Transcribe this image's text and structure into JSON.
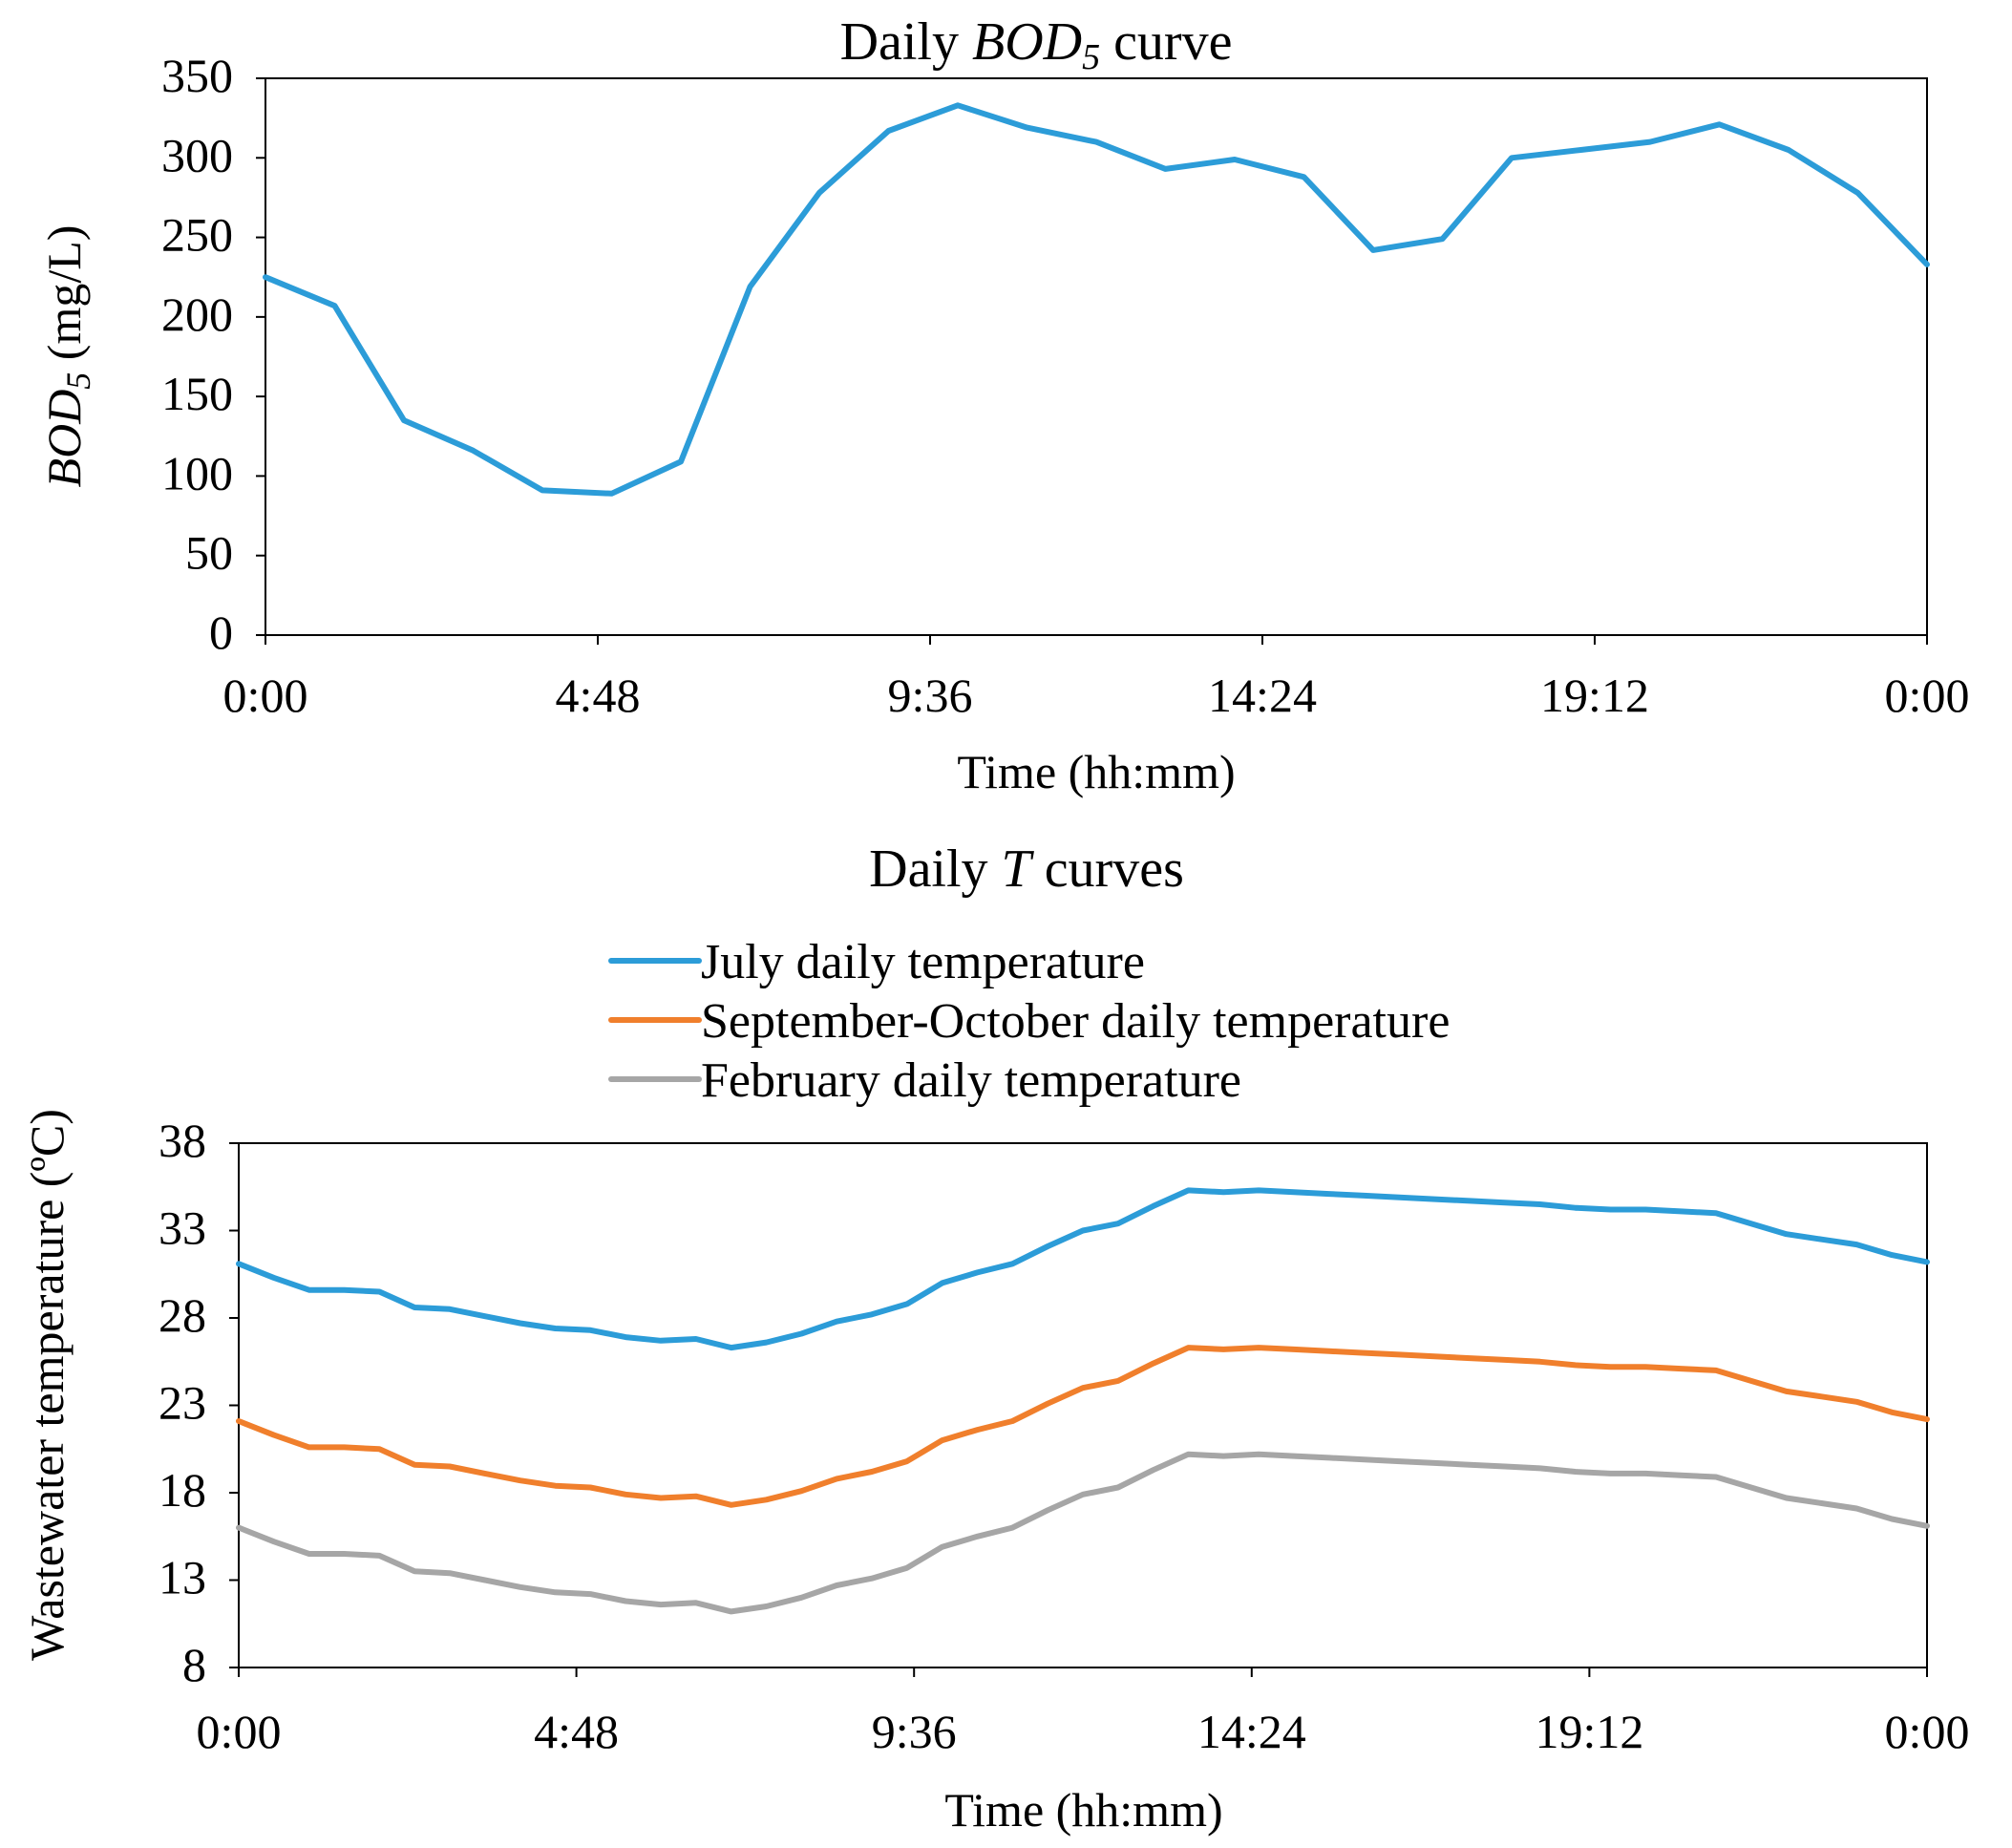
{
  "chart_data": [
    {
      "type": "line",
      "title": {
        "prefix": "Daily ",
        "italic": "BOD",
        "sub": "5",
        "suffix": " curve"
      },
      "xlabel": "Time (hh:mm)",
      "ylabel": {
        "italic": "BOD",
        "sub": "5",
        "suffix": " (mg/L)"
      },
      "x_unit": "hours",
      "xlim": [
        0,
        24
      ],
      "ylim": [
        0,
        350
      ],
      "x_ticks": [
        0,
        4.8,
        9.6,
        14.4,
        19.2,
        24
      ],
      "x_tick_labels": [
        "0:00",
        "4:48",
        "9:36",
        "14:24",
        "19:12",
        "0:00"
      ],
      "y_ticks": [
        0,
        50,
        100,
        150,
        200,
        250,
        300,
        350
      ],
      "y_tick_labels": [
        "0",
        "50",
        "100",
        "150",
        "200",
        "250",
        "300",
        "350"
      ],
      "grid": false,
      "series": [
        {
          "name": "BOD5",
          "color": "#2C9CD8",
          "x": [
            0,
            1,
            2,
            3,
            4,
            5,
            6,
            7,
            8,
            9,
            10,
            11,
            12,
            13,
            14,
            15,
            16,
            17,
            18,
            19,
            20,
            21,
            22,
            23,
            24
          ],
          "values": [
            225,
            207,
            135,
            116,
            91,
            89,
            109,
            219,
            278,
            317,
            333,
            319,
            310,
            293,
            299,
            288,
            242,
            249,
            300,
            305,
            310,
            321,
            305,
            278,
            233
          ]
        }
      ]
    },
    {
      "type": "line",
      "title": {
        "prefix": "Daily ",
        "italic": "T",
        "sub": "",
        "suffix": " curves"
      },
      "xlabel": "Time (hh:mm)",
      "ylabel": "Wastewater temperature (ºC)",
      "x_unit": "hours",
      "xlim": [
        0,
        24
      ],
      "ylim": [
        8,
        38
      ],
      "x_ticks": [
        0,
        4.8,
        9.6,
        14.4,
        19.2,
        24
      ],
      "x_tick_labels": [
        "0:00",
        "4:48",
        "9:36",
        "14:24",
        "19:12",
        "0:00"
      ],
      "y_ticks": [
        8,
        13,
        18,
        23,
        28,
        33,
        38
      ],
      "y_tick_labels": [
        "8",
        "13",
        "18",
        "23",
        "28",
        "33",
        "38"
      ],
      "grid": false,
      "legend_position": "top-center",
      "series": [
        {
          "name": "July daily temperature",
          "color": "#2C9CD8",
          "x": [
            0,
            0.5,
            1,
            1.5,
            2,
            2.5,
            3,
            3.5,
            4,
            4.5,
            5,
            5.5,
            6,
            6.5,
            7,
            7.5,
            8,
            8.5,
            9,
            9.5,
            10,
            10.5,
            11,
            11.5,
            12,
            12.5,
            13,
            13.5,
            14,
            14.5,
            15,
            15.5,
            16,
            16.5,
            17,
            17.5,
            18,
            18.5,
            19,
            19.5,
            20,
            20.5,
            21,
            21.5,
            22,
            22.5,
            23,
            23.5,
            24
          ],
          "values": [
            31.1,
            30.3,
            29.6,
            29.6,
            29.5,
            28.6,
            28.5,
            28.1,
            27.7,
            27.4,
            27.3,
            26.9,
            26.7,
            26.8,
            26.3,
            26.6,
            27.1,
            27.8,
            28.2,
            28.8,
            30.0,
            30.6,
            31.1,
            32.1,
            33.0,
            33.4,
            34.4,
            35.3,
            35.2,
            35.3,
            35.2,
            35.1,
            35.0,
            34.9,
            34.8,
            34.7,
            34.6,
            34.5,
            34.3,
            34.2,
            34.2,
            34.1,
            34.0,
            33.4,
            32.8,
            32.5,
            32.2,
            31.6,
            31.2
          ]
        },
        {
          "name": "September-October daily temperature",
          "color": "#F07F2C",
          "x": [
            0,
            0.5,
            1,
            1.5,
            2,
            2.5,
            3,
            3.5,
            4,
            4.5,
            5,
            5.5,
            6,
            6.5,
            7,
            7.5,
            8,
            8.5,
            9,
            9.5,
            10,
            10.5,
            11,
            11.5,
            12,
            12.5,
            13,
            13.5,
            14,
            14.5,
            15,
            15.5,
            16,
            16.5,
            17,
            17.5,
            18,
            18.5,
            19,
            19.5,
            20,
            20.5,
            21,
            21.5,
            22,
            22.5,
            23,
            23.5,
            24
          ],
          "values": [
            22.1,
            21.3,
            20.6,
            20.6,
            20.5,
            19.6,
            19.5,
            19.1,
            18.7,
            18.4,
            18.3,
            17.9,
            17.7,
            17.8,
            17.3,
            17.6,
            18.1,
            18.8,
            19.2,
            19.8,
            21.0,
            21.6,
            22.1,
            23.1,
            24.0,
            24.4,
            25.4,
            26.3,
            26.2,
            26.3,
            26.2,
            26.1,
            26.0,
            25.9,
            25.8,
            25.7,
            25.6,
            25.5,
            25.3,
            25.2,
            25.2,
            25.1,
            25.0,
            24.4,
            23.8,
            23.5,
            23.2,
            22.6,
            22.2
          ]
        },
        {
          "name": "February daily temperature",
          "color": "#A6A6A6",
          "x": [
            0,
            0.5,
            1,
            1.5,
            2,
            2.5,
            3,
            3.5,
            4,
            4.5,
            5,
            5.5,
            6,
            6.5,
            7,
            7.5,
            8,
            8.5,
            9,
            9.5,
            10,
            10.5,
            11,
            11.5,
            12,
            12.5,
            13,
            13.5,
            14,
            14.5,
            15,
            15.5,
            16,
            16.5,
            17,
            17.5,
            18,
            18.5,
            19,
            19.5,
            20,
            20.5,
            21,
            21.5,
            22,
            22.5,
            23,
            23.5,
            24
          ],
          "values": [
            16.0,
            15.2,
            14.5,
            14.5,
            14.4,
            13.5,
            13.4,
            13.0,
            12.6,
            12.3,
            12.2,
            11.8,
            11.6,
            11.7,
            11.2,
            11.5,
            12.0,
            12.7,
            13.1,
            13.7,
            14.9,
            15.5,
            16.0,
            17.0,
            17.9,
            18.3,
            19.3,
            20.2,
            20.1,
            20.2,
            20.1,
            20.0,
            19.9,
            19.8,
            19.7,
            19.6,
            19.5,
            19.4,
            19.2,
            19.1,
            19.1,
            19.0,
            18.9,
            18.3,
            17.7,
            17.4,
            17.1,
            16.5,
            16.1
          ]
        }
      ]
    }
  ]
}
